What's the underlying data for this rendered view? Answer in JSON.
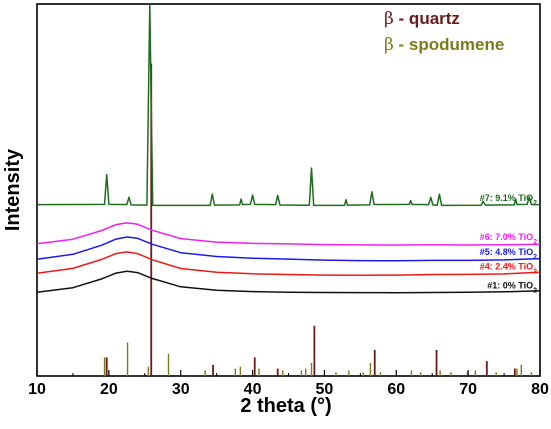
{
  "chart_data": {
    "type": "line",
    "xlabel": "2 theta (°)",
    "ylabel": "Intensity",
    "xlim": [
      10,
      80
    ],
    "xticks": [
      10,
      20,
      30,
      40,
      50,
      60,
      70,
      80
    ],
    "grid": false,
    "legend_position": "top-right",
    "legend": [
      {
        "name": "β - quartz",
        "symbol": "β",
        "text": " - quartz",
        "color": "#6b1a1a"
      },
      {
        "name": "β - spodumene",
        "symbol": "β",
        "text": " - spodumene",
        "color": "#7d7a1e"
      }
    ],
    "series": [
      {
        "name": "#7: 9.1% TiO2",
        "label_main": "#7: 9.1% TiO",
        "label_sub": "2",
        "color": "#1f6b1f",
        "baseline": 46,
        "x": [
          10,
          19.4,
          19.7,
          20.0,
          22.5,
          22.8,
          23.1,
          25.3,
          25.7,
          26.1,
          34.1,
          34.4,
          34.7,
          38.2,
          38.4,
          38.6,
          39.7,
          40.0,
          40.3,
          43.2,
          43.5,
          43.8,
          47.9,
          48.2,
          48.5,
          52.8,
          53.0,
          53.2,
          56.3,
          56.6,
          56.9,
          61.8,
          62.0,
          62.2,
          64.5,
          64.8,
          65.1,
          65.7,
          66.0,
          66.3,
          71.8,
          72.1,
          72.4,
          76.4,
          76.6,
          76.8,
          78.2,
          78.5,
          78.8,
          80
        ],
        "y": [
          46,
          46,
          54,
          46,
          46,
          48,
          46,
          46,
          100,
          46,
          46,
          49,
          46,
          46,
          47.5,
          46,
          46,
          48.5,
          46,
          46,
          48.5,
          46,
          46,
          56,
          46,
          46,
          47.5,
          46,
          46,
          49.5,
          46,
          46,
          47,
          46,
          46,
          48,
          46,
          46,
          49,
          46,
          46,
          47,
          46,
          46,
          47.5,
          46,
          46,
          48,
          46,
          46
        ]
      },
      {
        "name": "#6: 7.0% TiO2",
        "label_main": "#6: 7.0% TiO",
        "label_sub": "2",
        "color": "#ee22ee",
        "baseline": 35.5,
        "x": [
          10,
          15,
          19,
          21,
          22.5,
          24,
          26,
          30,
          35,
          40,
          45,
          50,
          55,
          60,
          65,
          70,
          75,
          80
        ],
        "y": [
          35.5,
          36.8,
          39.2,
          40.8,
          41.3,
          40.9,
          39.3,
          37.0,
          36.0,
          35.6,
          35.4,
          35.2,
          35.1,
          35.1,
          35.2,
          35.2,
          35.3,
          35.5
        ]
      },
      {
        "name": "#5: 4.8% TiO2",
        "label_main": "#5: 4.8% TiO",
        "label_sub": "2",
        "color": "#1a1aee",
        "baseline": 31.5,
        "x": [
          10,
          15,
          19,
          21,
          22.5,
          24,
          26,
          30,
          35,
          40,
          45,
          50,
          55,
          60,
          65,
          70,
          75,
          80
        ],
        "y": [
          31.5,
          32.8,
          35.2,
          36.8,
          37.3,
          36.9,
          35.3,
          33.0,
          32.0,
          31.6,
          31.4,
          31.2,
          31.1,
          31.1,
          31.2,
          31.2,
          31.3,
          31.6
        ]
      },
      {
        "name": "#4: 2.4% TiO2",
        "label_main": "#4: 2.4% TiO",
        "label_sub": "2",
        "color": "#ee1a1a",
        "baseline": 27.5,
        "x": [
          10,
          15,
          19,
          21,
          22.5,
          24,
          26,
          30,
          35,
          40,
          45,
          50,
          55,
          60,
          65,
          70,
          75,
          80
        ],
        "y": [
          27.5,
          28.8,
          31.2,
          32.8,
          33.3,
          32.9,
          31.3,
          29.0,
          28.0,
          27.6,
          27.4,
          27.2,
          27.1,
          27.1,
          27.2,
          27.2,
          27.3,
          27.8
        ]
      },
      {
        "name": "#1: 0% TiO2",
        "label_main": "#1: 0% TiO",
        "label_sub": "2",
        "color": "#111111",
        "baseline": 22.5,
        "x": [
          10,
          15,
          19,
          21,
          22.5,
          24,
          26,
          30,
          35,
          40,
          45,
          50,
          55,
          60,
          65,
          70,
          75,
          80
        ],
        "y": [
          22.5,
          23.8,
          26.2,
          27.8,
          28.3,
          27.9,
          26.3,
          24.0,
          23.0,
          22.6,
          22.4,
          22.3,
          22.3,
          22.3,
          22.4,
          22.5,
          22.7,
          23.0
        ]
      }
    ],
    "reference_quartz": {
      "name": "β - quartz",
      "color": "#6b1a1a",
      "x": [
        19.7,
        25.9,
        34.5,
        40.3,
        43.5,
        48.6,
        57.0,
        65.6,
        72.6,
        76.5
      ],
      "y": [
        5,
        84,
        3,
        5,
        2,
        13.5,
        7,
        7,
        4,
        2
      ]
    },
    "reference_spodumene": {
      "name": "β - spodumene",
      "color": "#7d7a1e",
      "x": [
        19.4,
        22.6,
        25.5,
        28.3,
        33.4,
        37.6,
        38.3,
        40.9,
        44.2,
        46.8,
        47.4,
        48.2,
        51.6,
        53.4,
        55.4,
        56.4,
        57.8,
        62.1,
        63.4,
        66.1,
        67.6,
        69.9,
        71.0,
        73.9,
        76.8,
        77.4,
        78.8
      ],
      "y": [
        5,
        9,
        2.5,
        6,
        1.5,
        2,
        2.5,
        2,
        1.5,
        1.5,
        2,
        3.5,
        1,
        1.5,
        1,
        3.5,
        1,
        1.5,
        1,
        1.5,
        1,
        1,
        1.5,
        1,
        2,
        3,
        1
      ]
    }
  }
}
